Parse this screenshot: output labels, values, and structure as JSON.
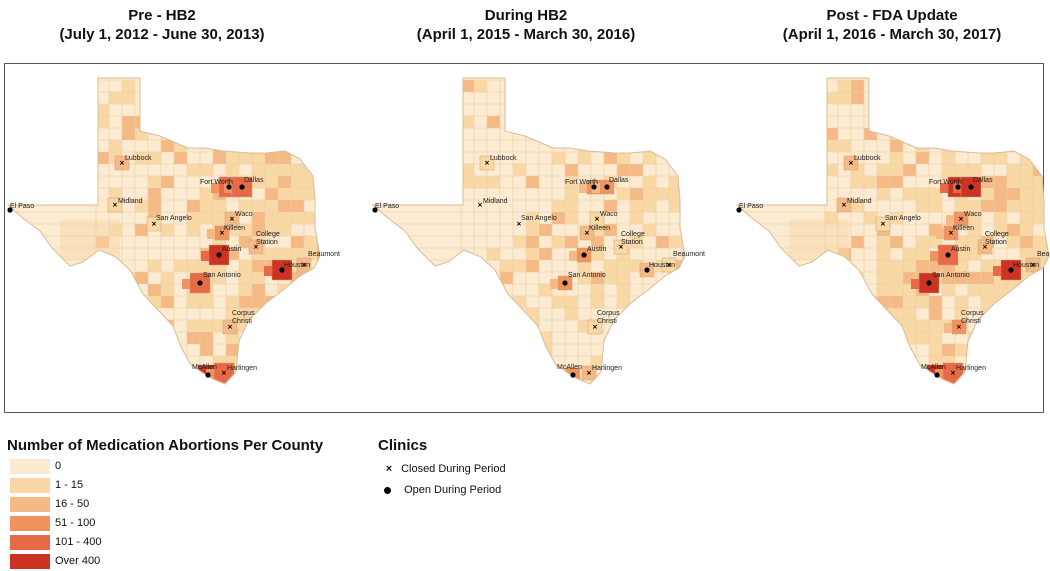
{
  "panels": [
    {
      "title": "Pre - HB2",
      "subtitle": "(July 1, 2012 - June 30, 2013)",
      "levels": {
        "Lubbock": 2,
        "Midland": 1,
        "San Angelo": 1,
        "Fort Worth": 4,
        "Dallas": 4,
        "Waco": 2,
        "Killeen": 3,
        "Austin": 5,
        "College Station": 2,
        "Beaumont": 2,
        "San Antonio": 4,
        "Houston": 5,
        "Corpus Christi": 2,
        "McAllen": 5,
        "Harlingen": 4,
        "El Paso": 0
      },
      "open": [
        "Fort Worth",
        "Dallas",
        "Austin",
        "San Antonio",
        "Houston",
        "McAllen",
        "El Paso"
      ],
      "closed": [
        "Lubbock",
        "Midland",
        "San Angelo",
        "Waco",
        "Killeen",
        "College Station",
        "Beaumont",
        "Corpus Christi",
        "Harlingen"
      ]
    },
    {
      "title": "During HB2",
      "subtitle": "(April 1, 2015 - March 30, 2016)",
      "levels": {
        "Lubbock": 1,
        "Midland": 0,
        "San Angelo": 0,
        "Fort Worth": 3,
        "Dallas": 3,
        "Waco": 1,
        "Killeen": 2,
        "Austin": 3,
        "College Station": 1,
        "Beaumont": 1,
        "San Antonio": 3,
        "Houston": 2,
        "Corpus Christi": 1,
        "McAllen": 3,
        "Harlingen": 2,
        "El Paso": 0
      },
      "open": [
        "Fort Worth",
        "Dallas",
        "Austin",
        "San Antonio",
        "Houston",
        "McAllen",
        "El Paso"
      ],
      "closed": [
        "Lubbock",
        "Midland",
        "San Angelo",
        "Waco",
        "Killeen",
        "College Station",
        "Beaumont",
        "Corpus Christi",
        "Harlingen"
      ]
    },
    {
      "title": "Post - FDA Update",
      "subtitle": "(April 1, 2016 - March 30, 2017)",
      "levels": {
        "Lubbock": 2,
        "Midland": 2,
        "San Angelo": 1,
        "Fort Worth": 5,
        "Dallas": 5,
        "Waco": 3,
        "Killeen": 3,
        "Austin": 4,
        "College Station": 2,
        "Beaumont": 2,
        "San Antonio": 5,
        "Houston": 5,
        "Corpus Christi": 3,
        "McAllen": 5,
        "Harlingen": 4,
        "El Paso": 0
      },
      "open": [
        "Fort Worth",
        "Dallas",
        "Austin",
        "San Antonio",
        "Houston",
        "McAllen",
        "El Paso"
      ],
      "closed": [
        "Lubbock",
        "Midland",
        "San Angelo",
        "Waco",
        "Killeen",
        "College Station",
        "Beaumont",
        "Corpus Christi",
        "Harlingen"
      ]
    }
  ],
  "legend": {
    "title": "Number of Medication Abortions Per County",
    "classes": [
      {
        "label": "0",
        "color": "#fcebd0"
      },
      {
        "label": "1 - 15",
        "color": "#f9d8a6"
      },
      {
        "label": "16 - 50",
        "color": "#f5b986"
      },
      {
        "label": "51 - 100",
        "color": "#f0935f"
      },
      {
        "label": "101 - 400",
        "color": "#e56a45"
      },
      {
        "label": "Over 400",
        "color": "#cd3322"
      }
    ]
  },
  "clinics_legend": {
    "title": "Clinics",
    "closed_label": "Closed During Period",
    "open_label": "Open During Period"
  },
  "cities": [
    "Lubbock",
    "Midland",
    "San Angelo",
    "Fort Worth",
    "Dallas",
    "Waco",
    "Killeen",
    "Austin",
    "College Station",
    "Beaumont",
    "San Antonio",
    "Houston",
    "Corpus Christi",
    "McAllen",
    "Harlingen",
    "El Paso"
  ]
}
